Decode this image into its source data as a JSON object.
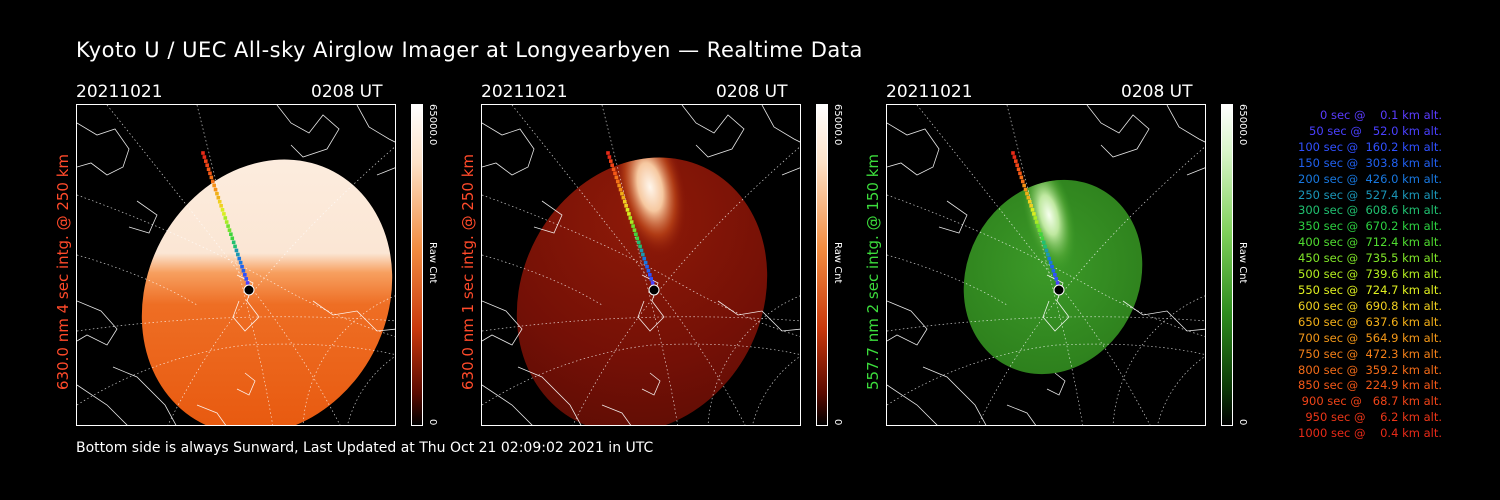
{
  "title": "Kyoto U / UEC All-sky Airglow Imager at Longyearbyen — Realtime Data",
  "footer": "Bottom side is always Sunward, Last Updated at Thu Oct 21 02:09:02 2021 in UTC",
  "panels": [
    {
      "date": "20211021",
      "time": "0208 UT",
      "label": "630.0 nm  4 sec intg. @ 250 km",
      "label_color": "#ff4a2a",
      "cbar_max": "65000.0",
      "cbar_unit": "Raw Cnt",
      "cbar_min": "0",
      "palette": "red"
    },
    {
      "date": "20211021",
      "time": "0208 UT",
      "label": "630.0 nm  1 sec intg. @ 250 km",
      "label_color": "#ff4a2a",
      "cbar_max": "65000.0",
      "cbar_unit": "Raw Cnt",
      "cbar_min": "0",
      "palette": "darkred"
    },
    {
      "date": "20211021",
      "time": "0208 UT",
      "label": "557.7 nm  2 sec intg. @ 150 km",
      "label_color": "#3cdc3c",
      "cbar_max": "65000.0",
      "cbar_unit": "Raw Cnt",
      "cbar_min": "0",
      "palette": "green"
    }
  ],
  "legend": [
    {
      "text": "   0 sec @    0.1 km alt.",
      "color": "#5a3cff"
    },
    {
      "text": "  50 sec @   52.0 km alt.",
      "color": "#4a40ff"
    },
    {
      "text": " 100 sec @  160.2 km alt.",
      "color": "#3050ff"
    },
    {
      "text": " 150 sec @  303.8 km alt.",
      "color": "#2060f0"
    },
    {
      "text": " 200 sec @  426.0 km alt.",
      "color": "#1878e0"
    },
    {
      "text": " 250 sec @  527.4 km alt.",
      "color": "#1a96b8"
    },
    {
      "text": " 300 sec @  608.6 km alt.",
      "color": "#20c070"
    },
    {
      "text": " 350 sec @  670.2 km alt.",
      "color": "#2cd040"
    },
    {
      "text": " 400 sec @  712.4 km alt.",
      "color": "#50dc30"
    },
    {
      "text": " 450 sec @  735.5 km alt.",
      "color": "#80e628"
    },
    {
      "text": " 500 sec @  739.6 km alt.",
      "color": "#b4ee20"
    },
    {
      "text": " 550 sec @  724.7 km alt.",
      "color": "#e0f020"
    },
    {
      "text": " 600 sec @  690.8 km alt.",
      "color": "#f0d020"
    },
    {
      "text": " 650 sec @  637.6 km alt.",
      "color": "#f4b018"
    },
    {
      "text": " 700 sec @  564.9 km alt.",
      "color": "#f49818"
    },
    {
      "text": " 750 sec @  472.3 km alt.",
      "color": "#f48018"
    },
    {
      "text": " 800 sec @  359.2 km alt.",
      "color": "#f46c18"
    },
    {
      "text": " 850 sec @  224.9 km alt.",
      "color": "#f45818"
    },
    {
      "text": " 900 sec @   68.7 km alt.",
      "color": "#f04418"
    },
    {
      "text": " 950 sec @    6.2 km alt.",
      "color": "#ec3618"
    },
    {
      "text": "1000 sec @    0.4 km alt.",
      "color": "#e82a18"
    }
  ]
}
